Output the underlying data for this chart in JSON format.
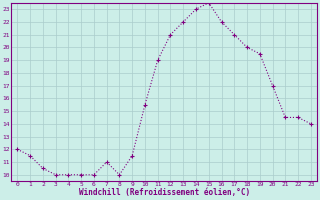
{
  "x": [
    0,
    1,
    2,
    3,
    4,
    5,
    6,
    7,
    8,
    9,
    10,
    11,
    12,
    13,
    14,
    15,
    16,
    17,
    18,
    19,
    20,
    21,
    22,
    23
  ],
  "y": [
    12,
    11.5,
    10.5,
    10,
    10,
    10,
    10,
    11,
    10,
    11.5,
    15.5,
    19,
    21,
    22,
    23,
    23.5,
    22,
    21,
    20,
    19.5,
    17,
    14.5,
    14.5,
    14
  ],
  "line_color": "#800080",
  "marker": "+",
  "marker_size": 3,
  "bg_color": "#cceee8",
  "grid_color": "#aacccc",
  "xlabel": "Windchill (Refroidissement éolien,°C)",
  "xlabel_color": "#800080",
  "tick_color": "#800080",
  "ylim_min": 10,
  "ylim_max": 23,
  "yticks": [
    10,
    11,
    12,
    13,
    14,
    15,
    16,
    17,
    18,
    19,
    20,
    21,
    22,
    23
  ],
  "xticks": [
    0,
    1,
    2,
    3,
    4,
    5,
    6,
    7,
    8,
    9,
    10,
    11,
    12,
    13,
    14,
    15,
    16,
    17,
    18,
    19,
    20,
    21,
    22,
    23
  ],
  "spine_color": "#800080",
  "lw": 0.8
}
